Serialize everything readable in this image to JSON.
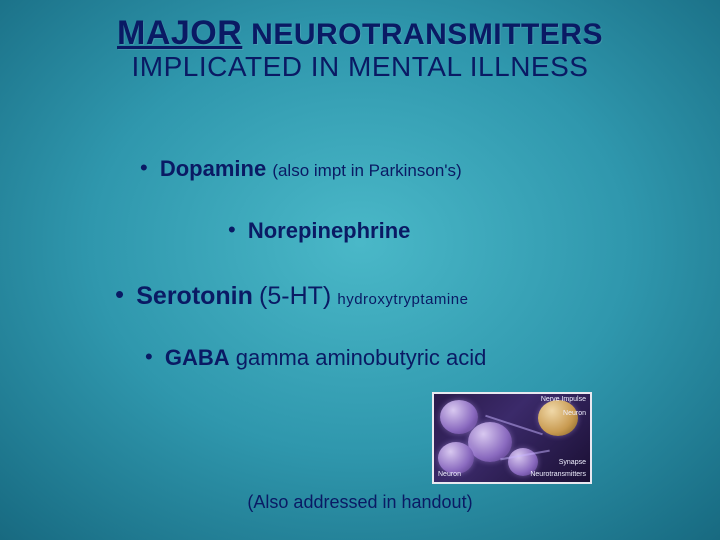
{
  "title": {
    "major": "MAJOR",
    "rest": " NEUROTRANSMITTERS",
    "subtitle": "IMPLICATED IN MENTAL ILLNESS"
  },
  "bullets": {
    "b1": {
      "name": "Dopamine",
      "note": "(also impt in Parkinson's)"
    },
    "b2": {
      "name": "Norepinephrine"
    },
    "b3": {
      "name": "Serotonin",
      "abbrev": "(5-HT)",
      "note": "hydroxytryptamine"
    },
    "b4": {
      "name": "GABA",
      "note": "gamma aminobutyric acid"
    }
  },
  "footnote": "(Also addressed in handout)",
  "diagram": {
    "labels": {
      "nerve_impulse": "Nerve Impulse",
      "neuron": "Neuron",
      "synapse": "Synapse",
      "neurotransmitters": "Neurotransmitters",
      "neuron2": "Neuron"
    }
  },
  "colors": {
    "text": "#0a1a64",
    "bg_center": "#4ab8c8",
    "bg_edge": "#072f3d"
  }
}
